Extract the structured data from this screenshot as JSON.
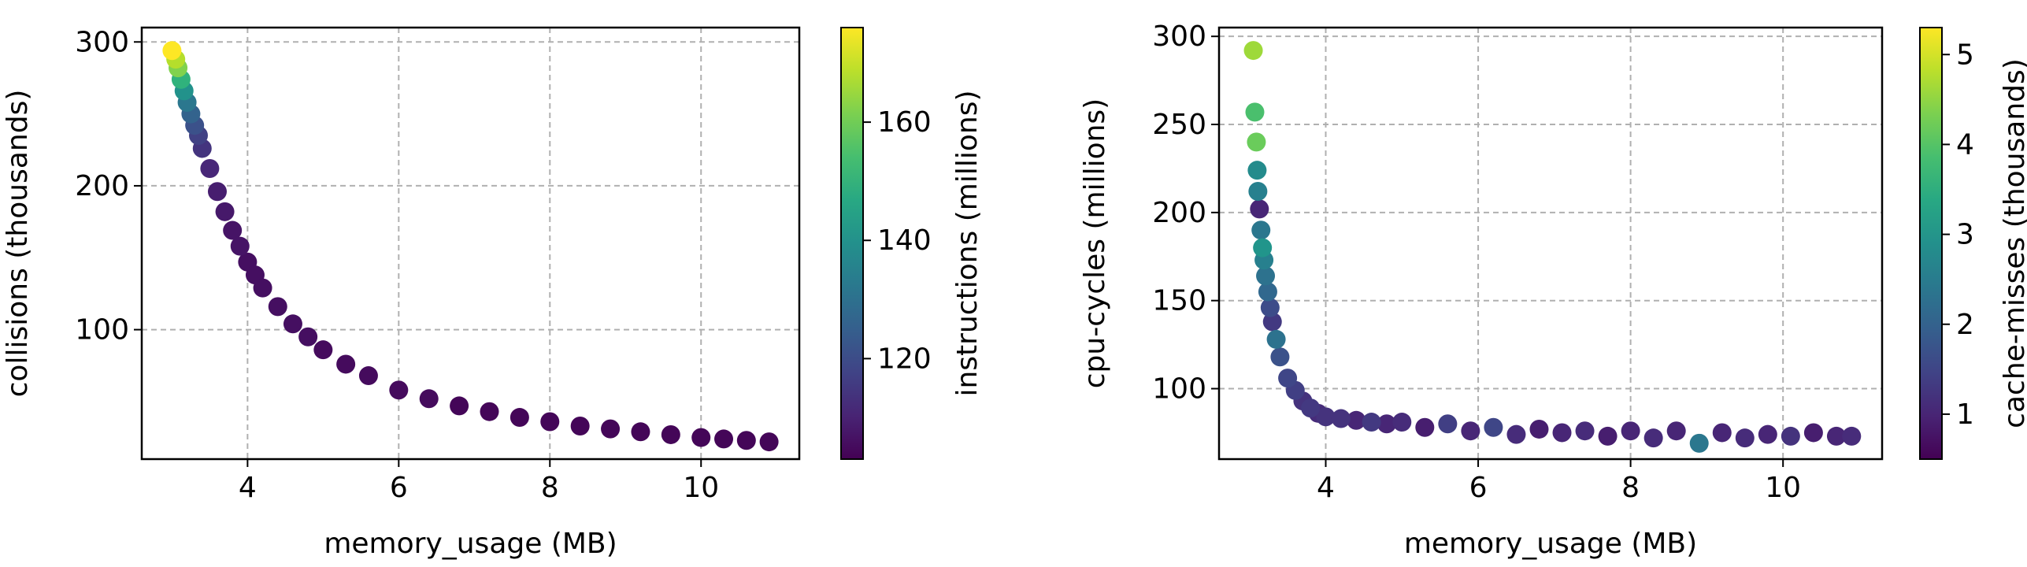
{
  "chart_data": [
    {
      "type": "scatter",
      "xlabel": "memory_usage (MB)",
      "ylabel": "collisions (thousands)",
      "colorbar_label": "instructions (millions)",
      "xlim": [
        2.6,
        11.3
      ],
      "ylim": [
        10,
        310
      ],
      "xticks": [
        4,
        6,
        8,
        10
      ],
      "yticks": [
        100,
        200,
        300
      ],
      "clim": [
        103,
        176
      ],
      "cticks": [
        120,
        140,
        160
      ],
      "colormap": "viridis",
      "grid": true,
      "x": [
        3.0,
        3.05,
        3.08,
        3.12,
        3.16,
        3.2,
        3.25,
        3.3,
        3.35,
        3.4,
        3.5,
        3.6,
        3.7,
        3.8,
        3.9,
        4.0,
        4.1,
        4.2,
        4.4,
        4.6,
        4.8,
        5.0,
        5.3,
        5.6,
        6.0,
        6.4,
        6.8,
        7.2,
        7.6,
        8.0,
        8.4,
        8.8,
        9.2,
        9.6,
        10.0,
        10.3,
        10.6,
        10.9
      ],
      "y": [
        294,
        288,
        282,
        274,
        266,
        258,
        250,
        242,
        235,
        226,
        212,
        196,
        182,
        169,
        158,
        147,
        138,
        129,
        116,
        104,
        95,
        86,
        76,
        68,
        58,
        52,
        47,
        43,
        39,
        36,
        33,
        31,
        29,
        27,
        25,
        24,
        23,
        22
      ],
      "c": [
        176,
        168,
        162,
        150,
        140,
        132,
        126,
        121,
        117,
        114,
        111,
        109,
        108,
        107,
        107,
        106,
        106,
        106,
        106,
        106,
        106,
        105,
        105,
        105,
        105,
        105,
        104,
        104,
        104,
        104,
        104,
        104,
        104,
        104,
        104,
        104,
        104,
        104
      ]
    },
    {
      "type": "scatter",
      "xlabel": "memory_usage (MB)",
      "ylabel": "cpu-cycles (millions)",
      "colorbar_label": "cache-misses (thousands)",
      "xlim": [
        2.6,
        11.3
      ],
      "ylim": [
        60,
        305
      ],
      "xticks": [
        4,
        6,
        8,
        10
      ],
      "yticks": [
        100,
        150,
        200,
        250,
        300
      ],
      "clim": [
        0.5,
        5.3
      ],
      "cticks": [
        1,
        2,
        3,
        4,
        5
      ],
      "colormap": "viridis",
      "grid": true,
      "x": [
        3.05,
        3.07,
        3.09,
        3.1,
        3.11,
        3.13,
        3.15,
        3.17,
        3.19,
        3.21,
        3.24,
        3.27,
        3.3,
        3.35,
        3.4,
        3.5,
        3.6,
        3.7,
        3.8,
        3.9,
        4.0,
        4.2,
        4.4,
        4.6,
        4.8,
        5.0,
        5.3,
        5.6,
        5.9,
        6.2,
        6.5,
        6.8,
        7.1,
        7.4,
        7.7,
        8.0,
        8.3,
        8.6,
        8.9,
        9.2,
        9.5,
        9.8,
        10.1,
        10.4,
        10.7,
        10.9
      ],
      "y": [
        292,
        257,
        240,
        224,
        212,
        202,
        190,
        180,
        173,
        164,
        155,
        146,
        138,
        128,
        118,
        106,
        99,
        93,
        89,
        86,
        84,
        83,
        82,
        81,
        80,
        81,
        78,
        80,
        76,
        78,
        74,
        77,
        75,
        76,
        73,
        76,
        72,
        76,
        69,
        75,
        72,
        74,
        73,
        75,
        73,
        73
      ],
      "c": [
        4.6,
        3.9,
        4.2,
        2.8,
        2.6,
        1.0,
        2.4,
        3.0,
        2.6,
        2.3,
        2.1,
        1.6,
        1.3,
        2.3,
        1.7,
        1.5,
        1.4,
        1.2,
        1.3,
        1.1,
        1.2,
        1.2,
        1.0,
        1.3,
        1.0,
        1.1,
        0.9,
        1.4,
        1.0,
        1.5,
        1.1,
        0.9,
        1.0,
        1.1,
        0.9,
        1.0,
        1.1,
        1.0,
        2.4,
        1.0,
        1.1,
        1.0,
        1.2,
        0.9,
        1.0,
        1.1
      ]
    }
  ]
}
